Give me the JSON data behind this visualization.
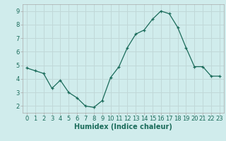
{
  "x": [
    0,
    1,
    2,
    3,
    4,
    5,
    6,
    7,
    8,
    9,
    10,
    11,
    12,
    13,
    14,
    15,
    16,
    17,
    18,
    19,
    20,
    21,
    22,
    23
  ],
  "y": [
    4.8,
    4.6,
    4.4,
    3.3,
    3.9,
    3.0,
    2.6,
    2.0,
    1.9,
    2.4,
    4.1,
    4.9,
    6.3,
    7.3,
    7.6,
    8.4,
    9.0,
    8.8,
    7.8,
    6.3,
    4.9,
    4.9,
    4.2,
    4.2
  ],
  "xlabel": "Humidex (Indice chaleur)",
  "ylim": [
    1.5,
    9.5
  ],
  "xlim": [
    -0.5,
    23.5
  ],
  "yticks": [
    2,
    3,
    4,
    5,
    6,
    7,
    8,
    9
  ],
  "xticks": [
    0,
    1,
    2,
    3,
    4,
    5,
    6,
    7,
    8,
    9,
    10,
    11,
    12,
    13,
    14,
    15,
    16,
    17,
    18,
    19,
    20,
    21,
    22,
    23
  ],
  "line_color": "#1a6b5a",
  "marker": "+",
  "bg_color": "#d0ecec",
  "grid_color": "#c0d8d8",
  "xlabel_fontsize": 7,
  "tick_fontsize": 6,
  "title": ""
}
